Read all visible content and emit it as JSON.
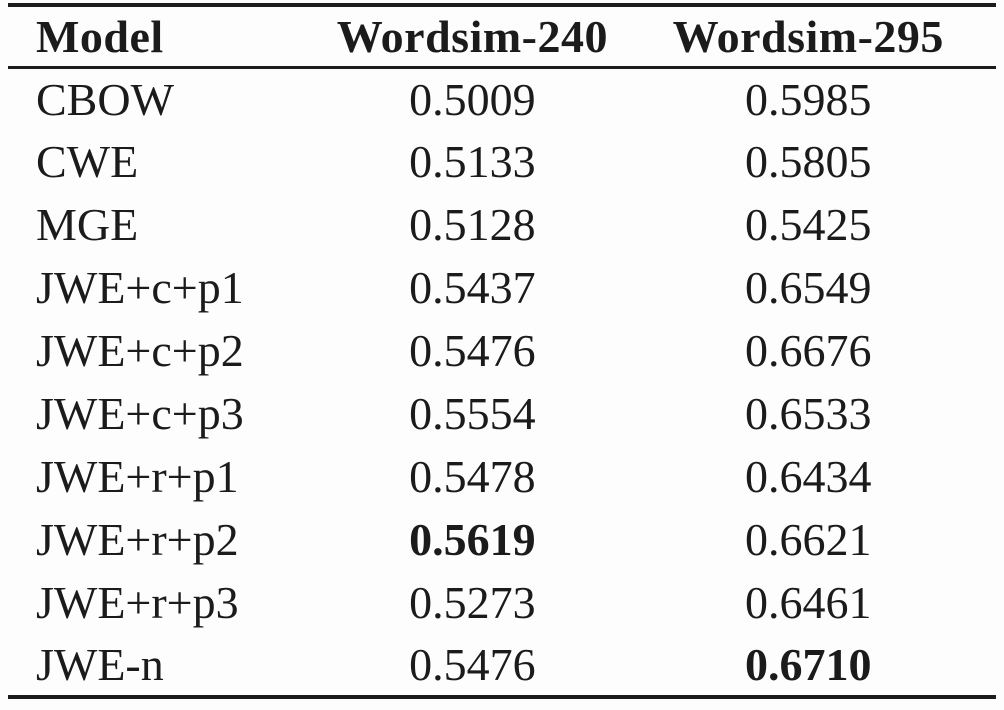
{
  "table": {
    "description": "Word similarity results table",
    "columns": [
      "Model",
      "Wordsim-240",
      "Wordsim-295"
    ],
    "rows": [
      {
        "model": "CBOW",
        "ws240": "0.5009",
        "ws295": "0.5985",
        "bold": []
      },
      {
        "model": "CWE",
        "ws240": "0.5133",
        "ws295": "0.5805",
        "bold": []
      },
      {
        "model": "MGE",
        "ws240": "0.5128",
        "ws295": "0.5425",
        "bold": []
      },
      {
        "model": "JWE+c+p1",
        "ws240": "0.5437",
        "ws295": "0.6549",
        "bold": []
      },
      {
        "model": "JWE+c+p2",
        "ws240": "0.5476",
        "ws295": "0.6676",
        "bold": []
      },
      {
        "model": "JWE+c+p3",
        "ws240": "0.5554",
        "ws295": "0.6533",
        "bold": []
      },
      {
        "model": "JWE+r+p1",
        "ws240": "0.5478",
        "ws295": "0.6434",
        "bold": []
      },
      {
        "model": "JWE+r+p2",
        "ws240": "0.5619",
        "ws295": "0.6621",
        "bold": [
          "ws240"
        ]
      },
      {
        "model": "JWE+r+p3",
        "ws240": "0.5273",
        "ws295": "0.6461",
        "bold": []
      },
      {
        "model": "JWE-n",
        "ws240": "0.5476",
        "ws295": "0.6710",
        "bold": [
          "ws295"
        ]
      }
    ],
    "colors": {
      "text": "#1b1b1b",
      "rule": "#1c1c1c",
      "background": "#fdfdfd"
    }
  }
}
